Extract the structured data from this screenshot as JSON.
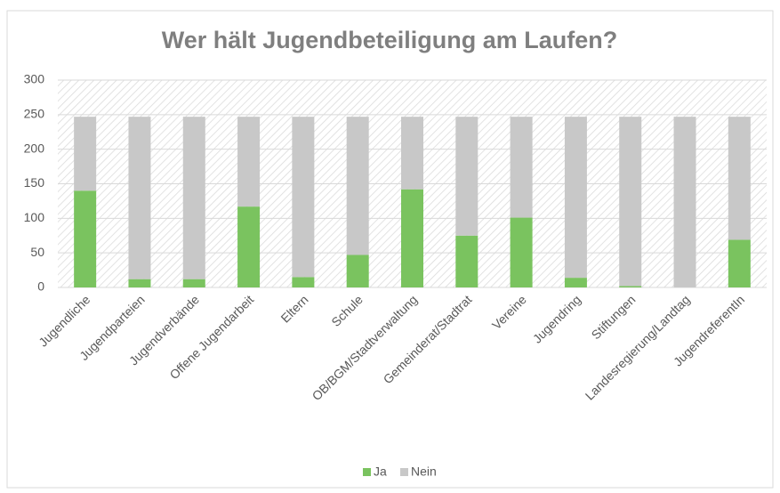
{
  "chart_data": {
    "type": "stacked_bar",
    "title": "Wer hält Jugendbeteiligung am Laufen?",
    "categories": [
      "Jugendliche",
      "Jugendparteien",
      "Jugendverbände",
      "Offene Jugendarbeit",
      "Eltern",
      "Schule",
      "OB/BGM/Stadtverwaltung",
      "Gemeinderat/Stadtrat",
      "Vereine",
      "Jugendring",
      "Stiftungen",
      "Landesregierung/Landtag",
      "JugendreferentIn"
    ],
    "series": [
      {
        "name": "Ja",
        "color": "#7ac35f",
        "values": [
          140,
          12,
          12,
          117,
          15,
          47,
          142,
          75,
          101,
          14,
          2,
          0,
          69
        ]
      },
      {
        "name": "Nein",
        "color": "#c8c8c8",
        "values": [
          107,
          235,
          235,
          130,
          232,
          200,
          105,
          172,
          146,
          233,
          245,
          247,
          178
        ]
      }
    ],
    "ylim": [
      0,
      300
    ],
    "yticks": [
      0,
      50,
      100,
      150,
      200,
      250,
      300
    ],
    "grid": true,
    "legend": "bottom"
  }
}
